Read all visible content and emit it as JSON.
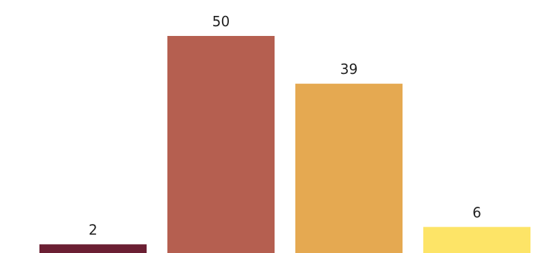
{
  "chart_data": {
    "type": "bar",
    "categories": [
      "",
      "",
      "",
      ""
    ],
    "values": [
      2,
      50,
      39,
      6
    ],
    "data_labels": [
      "2",
      "50",
      "39",
      "6"
    ],
    "colors": [
      "#6b1f33",
      "#b55f50",
      "#e5a951",
      "#fde467"
    ],
    "title": "",
    "xlabel": "",
    "ylabel": "",
    "ylim": [
      0,
      50
    ],
    "grid": false,
    "legend": "none"
  }
}
